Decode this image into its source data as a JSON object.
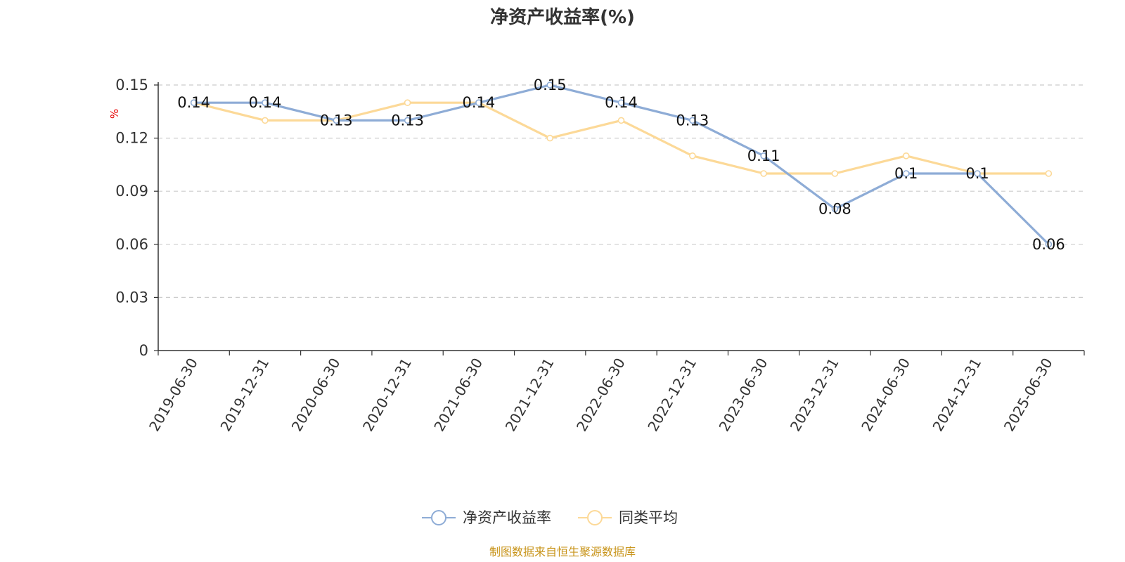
{
  "chart_data": {
    "type": "line",
    "title": "净资产收益率(%)",
    "ylabel": "%",
    "ylim": [
      0,
      0.15
    ],
    "yticks": [
      "0",
      "0.03",
      "0.06",
      "0.09",
      "0.12",
      "0.15"
    ],
    "grid": true,
    "legend_position": "bottom",
    "categories": [
      "2019-06-30",
      "2019-12-31",
      "2020-06-30",
      "2020-12-31",
      "2021-06-30",
      "2021-12-31",
      "2022-06-30",
      "2022-12-31",
      "2023-06-30",
      "2023-12-31",
      "2024-06-30",
      "2024-12-31",
      "2025-06-30"
    ],
    "series": [
      {
        "name": "净资产收益率",
        "color": "#8eacd6",
        "values": [
          0.14,
          0.14,
          0.13,
          0.13,
          0.14,
          0.15,
          0.14,
          0.13,
          0.11,
          0.08,
          0.1,
          0.1,
          0.06
        ],
        "labels": [
          "0.14",
          "0.14",
          "0.13",
          "0.13",
          "0.14",
          "0.15",
          "0.14",
          "0.13",
          "0.11",
          "0.08",
          "0.1",
          "0.1",
          "0.06"
        ]
      },
      {
        "name": "同类平均",
        "color": "#fcd998",
        "values": [
          0.14,
          0.13,
          0.13,
          0.14,
          0.14,
          0.12,
          0.13,
          0.11,
          0.1,
          0.1,
          0.11,
          0.1,
          0.1
        ]
      }
    ],
    "source": "制图数据来自恒生聚源数据库"
  }
}
